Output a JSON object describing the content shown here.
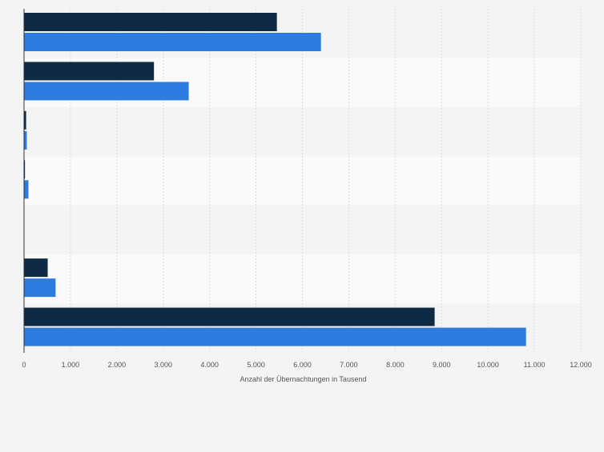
{
  "chart_data": {
    "type": "bar",
    "orientation": "horizontal",
    "categories": [
      "",
      "",
      "",
      "",
      "",
      "",
      ""
    ],
    "series": [
      {
        "color": "#0e2a45",
        "values": [
          5450,
          2800,
          45,
          20,
          0,
          510,
          8850
        ]
      },
      {
        "color": "#2e7be0",
        "values": [
          6400,
          3550,
          60,
          95,
          0,
          680,
          10820
        ]
      }
    ],
    "xlim": [
      0,
      12000
    ],
    "xticks": [
      0,
      1000,
      2000,
      3000,
      4000,
      5000,
      6000,
      7000,
      8000,
      9000,
      10000,
      11000,
      12000
    ],
    "xtick_labels": [
      "0",
      "1.000",
      "2.000",
      "3.000",
      "4.000",
      "5.000",
      "6.000",
      "7.000",
      "8.000",
      "9.000",
      "10.000",
      "11.000",
      "12.000"
    ],
    "xlabel": "Anzahl der Übernachtungen in Tausend",
    "ylabel": "",
    "title": "",
    "grid": true,
    "legend": "none"
  }
}
